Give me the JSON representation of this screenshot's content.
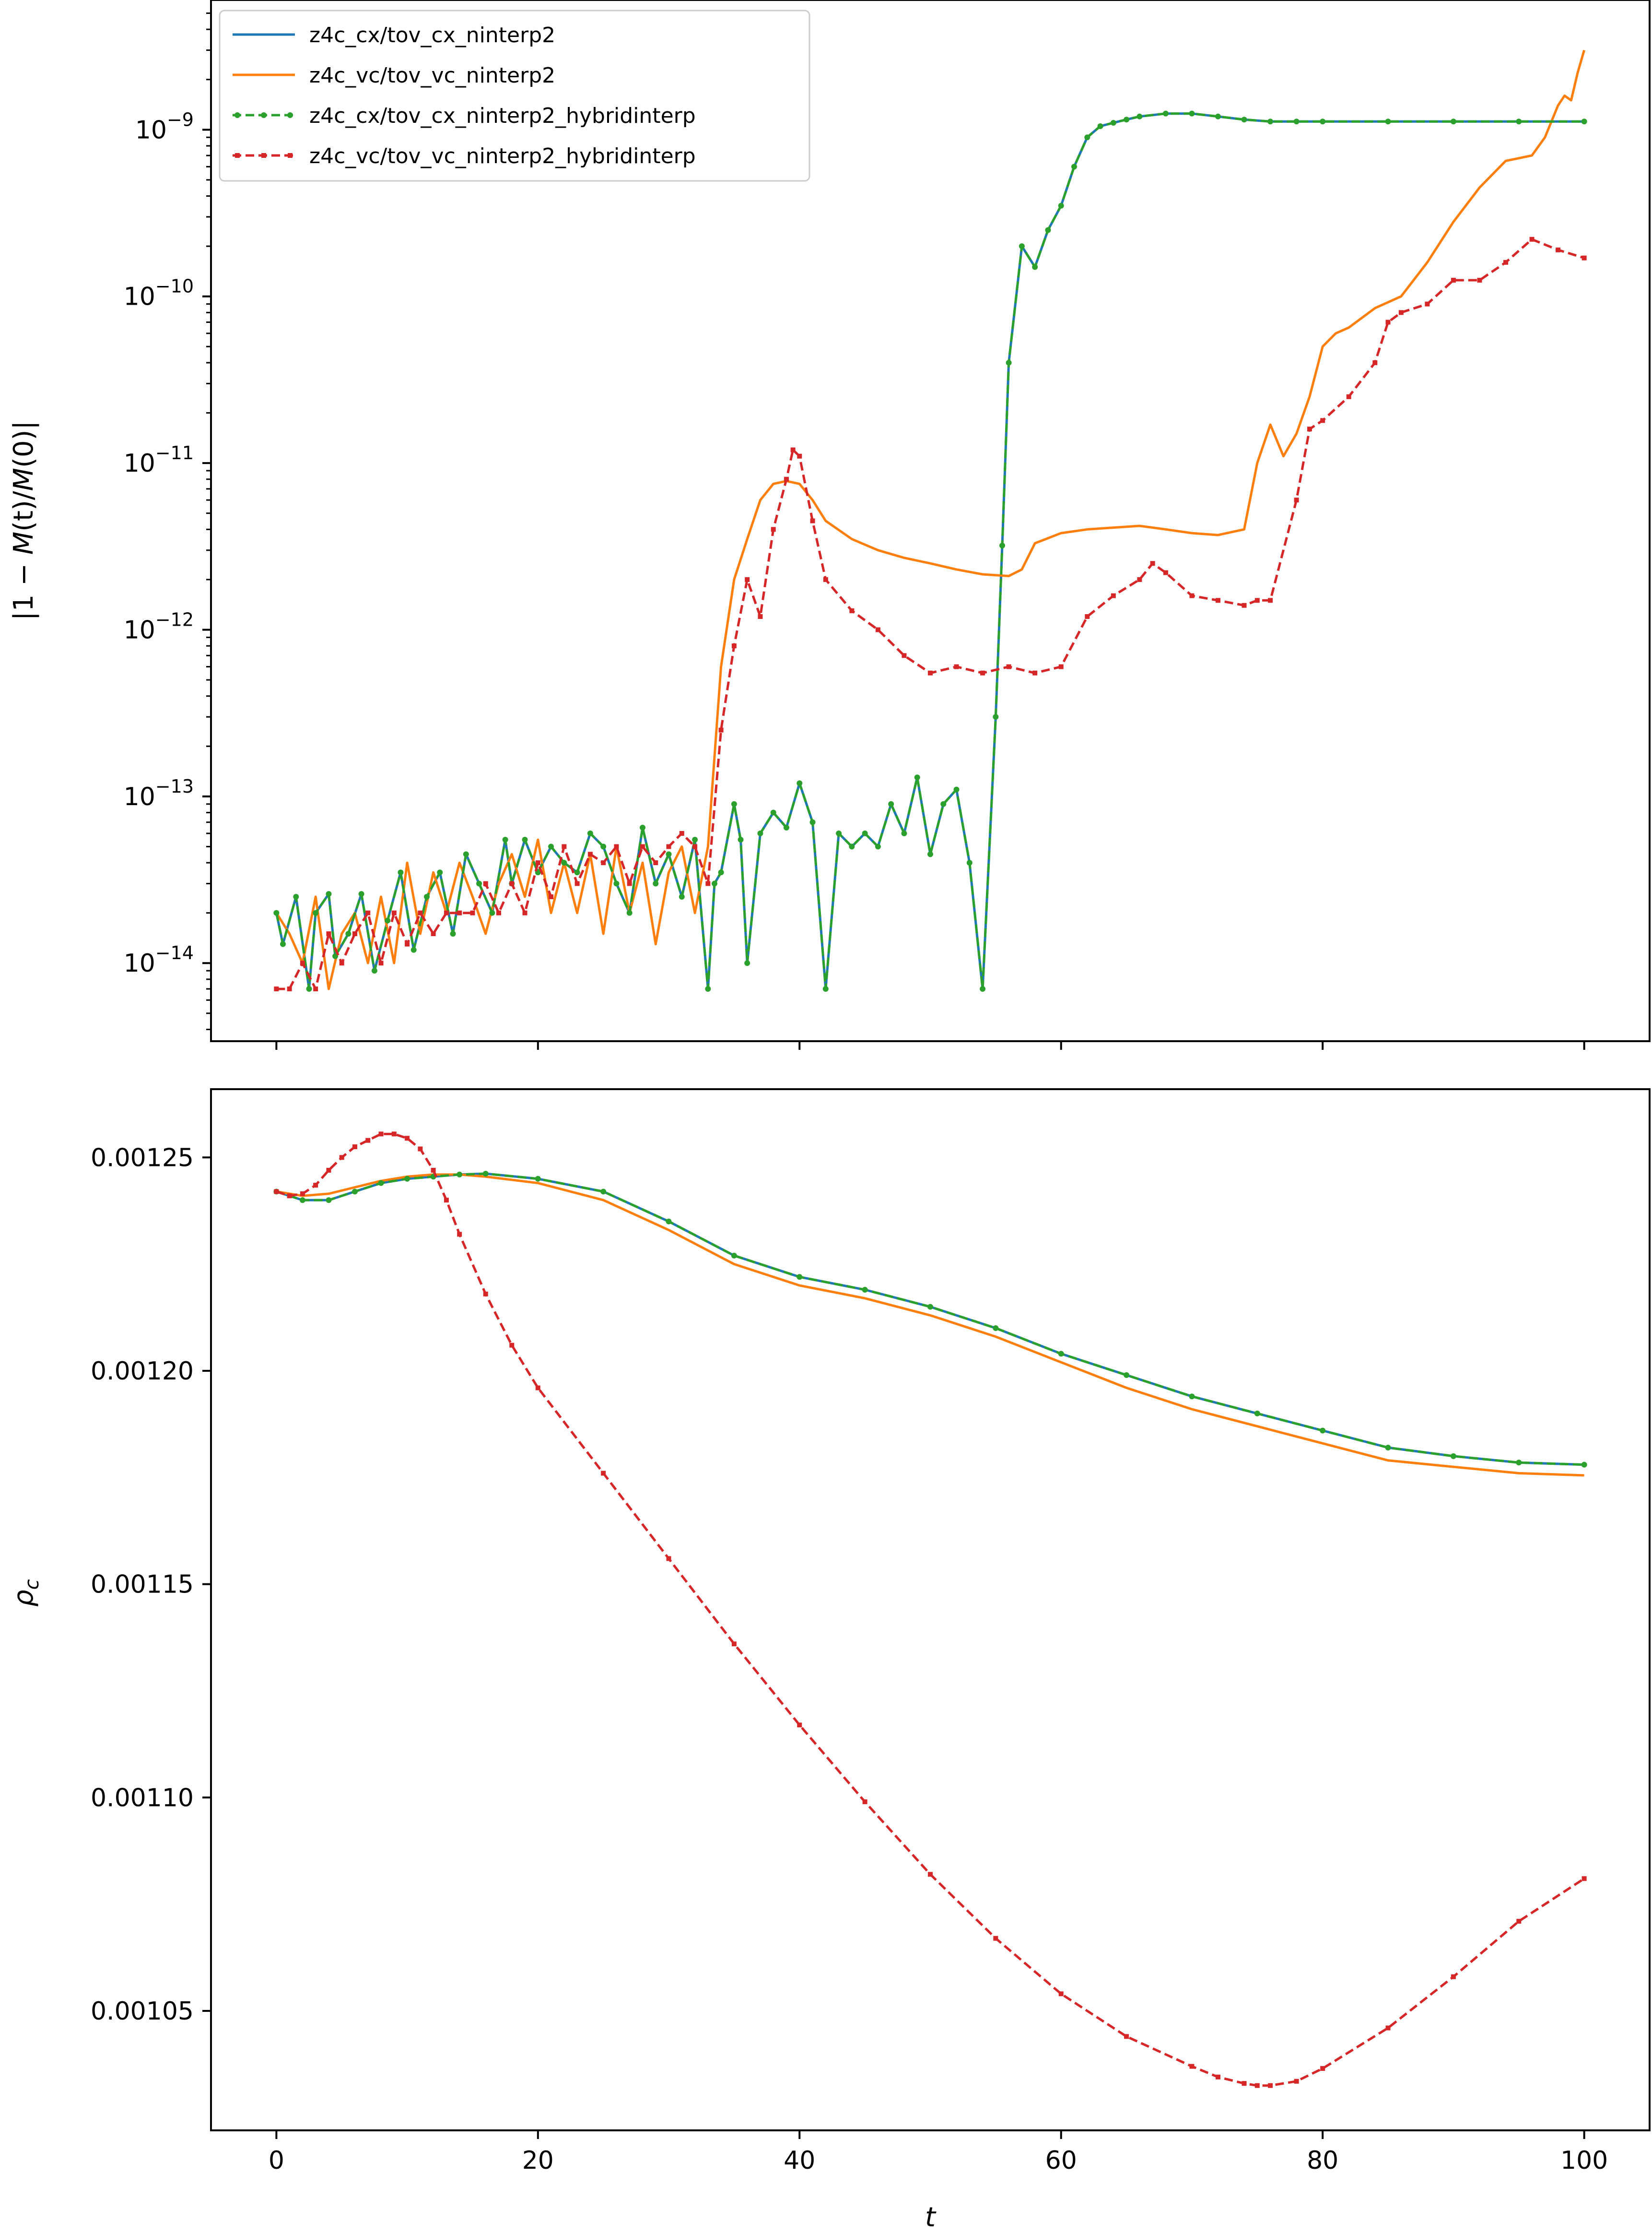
{
  "colors": {
    "c0": "#1f77b4",
    "c1": "#ff7f0e",
    "c2": "#2ca02c",
    "c3": "#d62728"
  },
  "chart_data": [
    {
      "type": "line",
      "panel": "top",
      "title": "",
      "xlabel": "",
      "ylabel_parts": {
        "pre": "|1 − ",
        "m1": "M",
        "t1": "(t)/",
        "m2": "M",
        "t2": "(0)|"
      },
      "yscale": "log",
      "xlim": [
        -5,
        105
      ],
      "ylim": [
        3.4e-15,
        6e-09
      ],
      "xticks": [
        0,
        20,
        40,
        60,
        80,
        100
      ],
      "yticks": [
        {
          "value": 1e-14,
          "base": "10",
          "exp": "−14"
        },
        {
          "value": 1e-13,
          "base": "10",
          "exp": "−13"
        },
        {
          "value": 1e-12,
          "base": "10",
          "exp": "−12"
        },
        {
          "value": 1e-11,
          "base": "10",
          "exp": "−11"
        },
        {
          "value": 1e-10,
          "base": "10",
          "exp": "−10"
        },
        {
          "value": 1e-09,
          "base": "10",
          "exp": "−9"
        }
      ],
      "legend_position": "top-left",
      "series": [
        {
          "name": "z4c_cx/tov_cx_ninterp2",
          "color": "#1f77b4",
          "style": "solid",
          "marker": "none",
          "x": [
            0,
            0.5,
            1.5,
            2.5,
            3,
            4,
            4.5,
            5.5,
            6.5,
            7.5,
            8.5,
            9.5,
            10.5,
            11.5,
            12.5,
            13.5,
            14.5,
            15.5,
            16.5,
            17.5,
            18,
            19,
            20,
            21,
            22,
            23,
            24,
            25,
            26,
            27,
            28,
            29,
            30,
            31,
            32,
            33,
            33.5,
            34,
            35,
            35.5,
            36,
            37,
            38,
            39,
            40,
            41,
            42,
            43,
            44,
            45,
            46,
            47,
            48,
            49,
            50,
            51,
            52,
            53,
            54,
            55,
            55.5,
            56,
            57,
            58,
            59,
            60,
            61,
            62,
            63,
            64,
            65,
            66,
            68,
            70,
            72,
            74,
            76,
            78,
            80,
            85,
            90,
            95,
            100
          ],
          "y": [
            2e-14,
            1.3e-14,
            2.5e-14,
            7e-15,
            2e-14,
            2.6e-14,
            1.1e-14,
            1.5e-14,
            2.6e-14,
            9e-15,
            1.8e-14,
            3.5e-14,
            1.2e-14,
            2.5e-14,
            3.5e-14,
            1.5e-14,
            4.5e-14,
            3e-14,
            2e-14,
            5.5e-14,
            3e-14,
            5.5e-14,
            3.5e-14,
            5e-14,
            4e-14,
            3.5e-14,
            6e-14,
            5e-14,
            3e-14,
            2e-14,
            6.5e-14,
            3e-14,
            4.5e-14,
            2.5e-14,
            5.5e-14,
            7e-15,
            3e-14,
            3.5e-14,
            9e-14,
            5.5e-14,
            1e-14,
            6e-14,
            8e-14,
            6.5e-14,
            1.2e-13,
            7e-14,
            7e-15,
            6e-14,
            5e-14,
            6e-14,
            5e-14,
            9e-14,
            6e-14,
            1.3e-13,
            4.5e-14,
            9e-14,
            1.1e-13,
            4e-14,
            7e-15,
            3e-13,
            3.2e-12,
            4e-11,
            2e-10,
            1.5e-10,
            2.5e-10,
            3.5e-10,
            6e-10,
            9e-10,
            1.05e-09,
            1.1e-09,
            1.15e-09,
            1.2e-09,
            1.25e-09,
            1.25e-09,
            1.2e-09,
            1.15e-09,
            1.12e-09,
            1.12e-09,
            1.12e-09,
            1.12e-09,
            1.12e-09,
            1.12e-09,
            1.12e-09
          ]
        },
        {
          "name": "z4c_vc/tov_vc_ninterp2",
          "color": "#ff7f0e",
          "style": "solid",
          "marker": "none",
          "x": [
            0,
            1,
            2,
            3,
            4,
            5,
            6,
            7,
            8,
            9,
            10,
            11,
            12,
            13,
            14,
            15,
            16,
            17,
            18,
            19,
            20,
            21,
            22,
            23,
            24,
            25,
            26,
            27,
            28,
            29,
            30,
            31,
            32,
            33,
            34,
            35,
            36,
            37,
            38,
            39,
            40,
            41,
            42,
            44,
            46,
            48,
            50,
            52,
            54,
            56,
            57,
            58,
            60,
            62,
            64,
            66,
            68,
            70,
            72,
            74,
            75,
            76,
            77,
            78,
            79,
            80,
            81,
            82,
            84,
            86,
            88,
            90,
            92,
            94,
            96,
            97,
            98,
            98.5,
            99,
            99.5,
            100
          ],
          "y": [
            2e-14,
            1.5e-14,
            1e-14,
            2.5e-14,
            7e-15,
            1.5e-14,
            2e-14,
            1e-14,
            2.5e-14,
            1e-14,
            4e-14,
            1.5e-14,
            3.5e-14,
            2e-14,
            4e-14,
            2.5e-14,
            1.5e-14,
            3e-14,
            4.5e-14,
            2.5e-14,
            5.5e-14,
            2e-14,
            4e-14,
            2e-14,
            4.5e-14,
            1.5e-14,
            5e-14,
            2e-14,
            4e-14,
            1.3e-14,
            3.5e-14,
            5e-14,
            2e-14,
            5e-14,
            6e-13,
            2e-12,
            3.5e-12,
            6e-12,
            7.5e-12,
            7.8e-12,
            7.5e-12,
            6e-12,
            4.5e-12,
            3.5e-12,
            3e-12,
            2.7e-12,
            2.5e-12,
            2.3e-12,
            2.15e-12,
            2.1e-12,
            2.3e-12,
            3.3e-12,
            3.8e-12,
            4e-12,
            4.1e-12,
            4.2e-12,
            4e-12,
            3.8e-12,
            3.7e-12,
            4e-12,
            1e-11,
            1.7e-11,
            1.1e-11,
            1.5e-11,
            2.5e-11,
            5e-11,
            6e-11,
            6.5e-11,
            8.5e-11,
            1e-10,
            1.6e-10,
            2.8e-10,
            4.5e-10,
            6.5e-10,
            7e-10,
            9e-10,
            1.4e-09,
            1.6e-09,
            1.5e-09,
            2.2e-09,
            3e-09
          ]
        },
        {
          "name": "z4c_cx/tov_cx_ninterp2_hybridinterp",
          "color": "#2ca02c",
          "style": "dashed",
          "marker": "dot",
          "x": [
            0,
            0.5,
            1.5,
            2.5,
            3,
            4,
            4.5,
            5.5,
            6.5,
            7.5,
            8.5,
            9.5,
            10.5,
            11.5,
            12.5,
            13.5,
            14.5,
            15.5,
            16.5,
            17.5,
            18,
            19,
            20,
            21,
            22,
            23,
            24,
            25,
            26,
            27,
            28,
            29,
            30,
            31,
            32,
            33,
            33.5,
            34,
            35,
            35.5,
            36,
            37,
            38,
            39,
            40,
            41,
            42,
            43,
            44,
            45,
            46,
            47,
            48,
            49,
            50,
            51,
            52,
            53,
            54,
            55,
            55.5,
            56,
            57,
            58,
            59,
            60,
            61,
            62,
            63,
            64,
            65,
            66,
            68,
            70,
            72,
            74,
            76,
            78,
            80,
            85,
            90,
            95,
            100
          ],
          "y": [
            2e-14,
            1.3e-14,
            2.5e-14,
            7e-15,
            2e-14,
            2.6e-14,
            1.1e-14,
            1.5e-14,
            2.6e-14,
            9e-15,
            1.8e-14,
            3.5e-14,
            1.2e-14,
            2.5e-14,
            3.5e-14,
            1.5e-14,
            4.5e-14,
            3e-14,
            2e-14,
            5.5e-14,
            3e-14,
            5.5e-14,
            3.5e-14,
            5e-14,
            4e-14,
            3.5e-14,
            6e-14,
            5e-14,
            3e-14,
            2e-14,
            6.5e-14,
            3e-14,
            4.5e-14,
            2.5e-14,
            5.5e-14,
            7e-15,
            3e-14,
            3.5e-14,
            9e-14,
            5.5e-14,
            1e-14,
            6e-14,
            8e-14,
            6.5e-14,
            1.2e-13,
            7e-14,
            7e-15,
            6e-14,
            5e-14,
            6e-14,
            5e-14,
            9e-14,
            6e-14,
            1.3e-13,
            4.5e-14,
            9e-14,
            1.1e-13,
            4e-14,
            7e-15,
            3e-13,
            3.2e-12,
            4e-11,
            2e-10,
            1.5e-10,
            2.5e-10,
            3.5e-10,
            6e-10,
            9e-10,
            1.05e-09,
            1.1e-09,
            1.15e-09,
            1.2e-09,
            1.25e-09,
            1.25e-09,
            1.2e-09,
            1.15e-09,
            1.12e-09,
            1.12e-09,
            1.12e-09,
            1.12e-09,
            1.12e-09,
            1.12e-09,
            1.12e-09
          ]
        },
        {
          "name": "z4c_vc/tov_vc_ninterp2_hybridinterp",
          "color": "#d62728",
          "style": "dashed",
          "marker": "square",
          "x": [
            0,
            1,
            2,
            3,
            4,
            5,
            6,
            7,
            8,
            9,
            10,
            11,
            12,
            13,
            14,
            15,
            16,
            17,
            18,
            19,
            20,
            21,
            22,
            23,
            24,
            25,
            26,
            27,
            28,
            29,
            30,
            31,
            32,
            33,
            34,
            35,
            36,
            37,
            38,
            39,
            39.5,
            40,
            41,
            42,
            44,
            46,
            48,
            50,
            52,
            54,
            56,
            58,
            60,
            62,
            64,
            66,
            67,
            68,
            70,
            72,
            74,
            75,
            76,
            78,
            79,
            80,
            82,
            84,
            85,
            86,
            88,
            90,
            92,
            94,
            96,
            98,
            100
          ],
          "y": [
            7e-15,
            7e-15,
            1e-14,
            7e-15,
            1.5e-14,
            1e-14,
            1.5e-14,
            2e-14,
            1e-14,
            2e-14,
            1.3e-14,
            2e-14,
            1.5e-14,
            2e-14,
            2e-14,
            2e-14,
            3e-14,
            2e-14,
            3e-14,
            2e-14,
            4e-14,
            2.5e-14,
            5e-14,
            3e-14,
            4.5e-14,
            4e-14,
            5e-14,
            3e-14,
            5e-14,
            4e-14,
            5e-14,
            6e-14,
            5e-14,
            3e-14,
            2.5e-13,
            8e-13,
            2e-12,
            1.2e-12,
            4e-12,
            8e-12,
            1.2e-11,
            1.1e-11,
            4.5e-12,
            2e-12,
            1.3e-12,
            1e-12,
            7e-13,
            5.5e-13,
            6e-13,
            5.5e-13,
            6e-13,
            5.5e-13,
            6e-13,
            1.2e-12,
            1.6e-12,
            2e-12,
            2.5e-12,
            2.2e-12,
            1.6e-12,
            1.5e-12,
            1.4e-12,
            1.5e-12,
            1.5e-12,
            6e-12,
            1.6e-11,
            1.8e-11,
            2.5e-11,
            4e-11,
            7e-11,
            8e-11,
            9e-11,
            1.25e-10,
            1.25e-10,
            1.6e-10,
            2.2e-10,
            1.9e-10,
            1.7e-10
          ]
        }
      ]
    },
    {
      "type": "line",
      "panel": "bottom",
      "title": "",
      "xlabel": "t",
      "ylabel_parts": {
        "main": "ρ",
        "sub": "c"
      },
      "xlim": [
        -5,
        105
      ],
      "ylim": [
        0.001022,
        0.001266
      ],
      "xticks": [
        0,
        20,
        40,
        60,
        80,
        100
      ],
      "yticks": [
        0.00105,
        0.0011,
        0.00115,
        0.0012,
        0.00125
      ],
      "ytick_labels": [
        "0.00105",
        "0.00110",
        "0.00115",
        "0.00120",
        "0.00125"
      ],
      "series": [
        {
          "name": "z4c_cx/tov_cx_ninterp2",
          "color": "#1f77b4",
          "style": "solid",
          "marker": "none",
          "x": [
            0,
            2,
            4,
            6,
            8,
            10,
            12,
            14,
            16,
            20,
            25,
            30,
            35,
            40,
            45,
            50,
            55,
            60,
            65,
            70,
            75,
            80,
            85,
            90,
            95,
            100
          ],
          "y": [
            0.001242,
            0.00124,
            0.00124,
            0.001242,
            0.001244,
            0.001245,
            0.0012455,
            0.001246,
            0.0012462,
            0.001245,
            0.001242,
            0.001235,
            0.001227,
            0.001222,
            0.001219,
            0.001215,
            0.00121,
            0.001204,
            0.001199,
            0.001194,
            0.00119,
            0.001186,
            0.001182,
            0.00118,
            0.0011785,
            0.001178
          ]
        },
        {
          "name": "z4c_vc/tov_vc_ninterp2",
          "color": "#ff7f0e",
          "style": "solid",
          "marker": "none",
          "x": [
            0,
            2,
            4,
            6,
            8,
            10,
            12,
            14,
            16,
            20,
            25,
            30,
            35,
            40,
            45,
            50,
            55,
            60,
            65,
            70,
            75,
            80,
            85,
            90,
            95,
            100
          ],
          "y": [
            0.001242,
            0.001241,
            0.0012415,
            0.001243,
            0.0012445,
            0.0012455,
            0.001246,
            0.001246,
            0.0012455,
            0.001244,
            0.00124,
            0.001233,
            0.001225,
            0.00122,
            0.001217,
            0.001213,
            0.001208,
            0.001202,
            0.001196,
            0.001191,
            0.001187,
            0.001183,
            0.001179,
            0.0011775,
            0.001176,
            0.0011755
          ]
        },
        {
          "name": "z4c_cx/tov_cx_ninterp2_hybridinterp",
          "color": "#2ca02c",
          "style": "dashed",
          "marker": "dot",
          "x": [
            0,
            2,
            4,
            6,
            8,
            10,
            12,
            14,
            16,
            20,
            25,
            30,
            35,
            40,
            45,
            50,
            55,
            60,
            65,
            70,
            75,
            80,
            85,
            90,
            95,
            100
          ],
          "y": [
            0.001242,
            0.00124,
            0.00124,
            0.001242,
            0.001244,
            0.001245,
            0.0012455,
            0.001246,
            0.0012462,
            0.001245,
            0.001242,
            0.001235,
            0.001227,
            0.001222,
            0.001219,
            0.001215,
            0.00121,
            0.001204,
            0.001199,
            0.001194,
            0.00119,
            0.001186,
            0.001182,
            0.00118,
            0.0011785,
            0.001178
          ]
        },
        {
          "name": "z4c_vc/tov_vc_ninterp2_hybridinterp",
          "color": "#d62728",
          "style": "dashed",
          "marker": "square",
          "x": [
            0,
            1,
            2,
            3,
            4,
            5,
            6,
            7,
            8,
            9,
            10,
            11,
            12,
            13,
            14,
            16,
            18,
            20,
            25,
            30,
            35,
            40,
            45,
            50,
            55,
            60,
            65,
            70,
            72,
            74,
            75,
            76,
            78,
            80,
            85,
            90,
            95,
            100
          ],
          "y": [
            0.001242,
            0.001241,
            0.0012415,
            0.0012435,
            0.001247,
            0.00125,
            0.0012525,
            0.001254,
            0.0012555,
            0.0012555,
            0.0012545,
            0.001252,
            0.001247,
            0.00124,
            0.001232,
            0.001218,
            0.001206,
            0.001196,
            0.001176,
            0.001156,
            0.001136,
            0.001117,
            0.001099,
            0.001082,
            0.001067,
            0.001054,
            0.001044,
            0.001037,
            0.0010345,
            0.001033,
            0.0010325,
            0.0010325,
            0.0010335,
            0.0010365,
            0.001046,
            0.001058,
            0.001071,
            0.001081
          ]
        }
      ]
    }
  ]
}
